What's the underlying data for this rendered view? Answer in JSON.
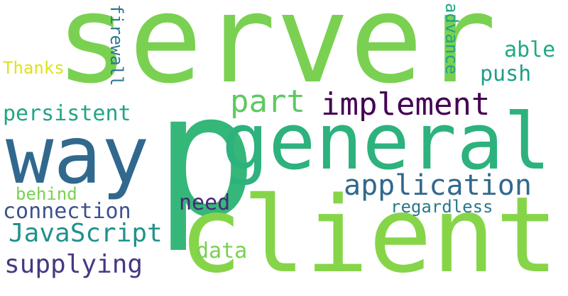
{
  "words": [
    {
      "text": "server",
      "color": "#7ad151"
    },
    {
      "text": "p",
      "color": "#35b779"
    },
    {
      "text": "general",
      "color": "#2db27d"
    },
    {
      "text": "way",
      "color": "#31688e"
    },
    {
      "text": "client",
      "color": "#86d549"
    },
    {
      "text": "implement",
      "color": "#440154"
    },
    {
      "text": "application",
      "color": "#31688e"
    },
    {
      "text": "JavaScript",
      "color": "#21918c"
    },
    {
      "text": "supplying",
      "color": "#443983"
    },
    {
      "text": "persistent",
      "color": "#21a585"
    },
    {
      "text": "connection",
      "color": "#3b528b"
    },
    {
      "text": "part",
      "color": "#5ec962"
    },
    {
      "text": "need",
      "color": "#482878"
    },
    {
      "text": "data",
      "color": "#7ad151"
    },
    {
      "text": "regardless",
      "color": "#2a788e"
    },
    {
      "text": "push",
      "color": "#1f9e89"
    },
    {
      "text": "able",
      "color": "#22a884"
    },
    {
      "text": "behind",
      "color": "#7ad151"
    },
    {
      "text": "Thanks",
      "color": "#dde318"
    },
    {
      "text": "firewall",
      "color": "#2a788e"
    },
    {
      "text": "advance",
      "color": "#20a386"
    }
  ]
}
